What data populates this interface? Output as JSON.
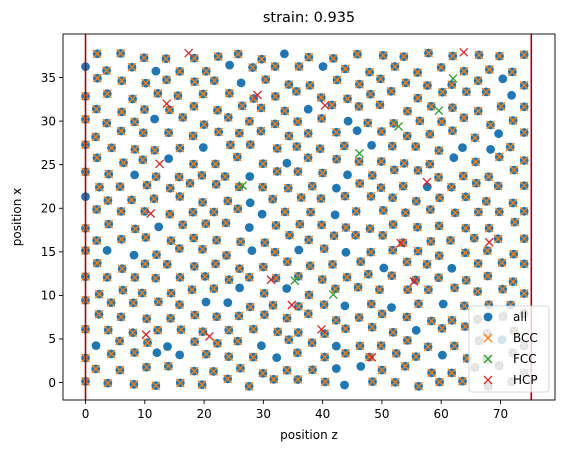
{
  "chart_data": {
    "type": "scatter",
    "title": "strain: 0.935",
    "xlabel": "position z",
    "ylabel": "position x",
    "xlim": [
      -3.8,
      79.2
    ],
    "ylim": [
      -2.0,
      40.0
    ],
    "xticks": [
      0,
      10,
      20,
      30,
      40,
      50,
      60,
      70
    ],
    "yticks": [
      0,
      5,
      10,
      15,
      20,
      25,
      30,
      35
    ],
    "grid": false,
    "legend_position": "lower right",
    "vertical_lines": [
      0.0,
      75.2
    ],
    "lattice": {
      "x_start": 0.0,
      "x_step": 2.0,
      "x_count": 38,
      "y_start": 0.0,
      "y_step": 3.0,
      "y_count": 13,
      "y_offset_odd_column": 1.5,
      "jitter": 0.45
    },
    "series": [
      {
        "name": "all",
        "marker": "circle",
        "color": "#1f77b4",
        "count": 1012
      },
      {
        "name": "BCC",
        "marker": "x",
        "color": "#ff7f0e",
        "count": 920
      },
      {
        "name": "FCC",
        "marker": "x",
        "color": "#2ca02c",
        "points": [
          [
            46.2,
            26.3
          ],
          [
            52.8,
            29.4
          ],
          [
            59.6,
            31.2
          ],
          [
            41.8,
            10.1
          ],
          [
            26.5,
            22.6
          ],
          [
            35.3,
            11.7
          ],
          [
            62.0,
            34.9
          ]
        ]
      },
      {
        "name": "HCP",
        "marker": "x",
        "color": "#d62728",
        "points": [
          [
            17.4,
            37.8
          ],
          [
            13.7,
            32.0
          ],
          [
            40.4,
            31.8
          ],
          [
            57.6,
            23.0
          ],
          [
            53.2,
            16.0
          ],
          [
            55.4,
            11.6
          ],
          [
            68.1,
            16.1
          ],
          [
            11.0,
            19.4
          ],
          [
            10.2,
            5.5
          ],
          [
            31.3,
            11.8
          ],
          [
            34.8,
            8.9
          ],
          [
            20.9,
            5.3
          ],
          [
            39.8,
            6.1
          ],
          [
            12.5,
            25.1
          ],
          [
            63.8,
            37.9
          ],
          [
            48.3,
            2.9
          ],
          [
            29.0,
            33.0
          ]
        ]
      }
    ]
  },
  "legend": {
    "items": [
      {
        "label": "all",
        "marker": "circle",
        "color": "#1f77b4"
      },
      {
        "label": "BCC",
        "marker": "x",
        "color": "#ff7f0e"
      },
      {
        "label": "FCC",
        "marker": "x",
        "color": "#2ca02c"
      },
      {
        "label": "HCP",
        "marker": "x",
        "color": "#d62728"
      }
    ]
  },
  "colors": {
    "axes": "#000000",
    "vline": "#b00000"
  }
}
